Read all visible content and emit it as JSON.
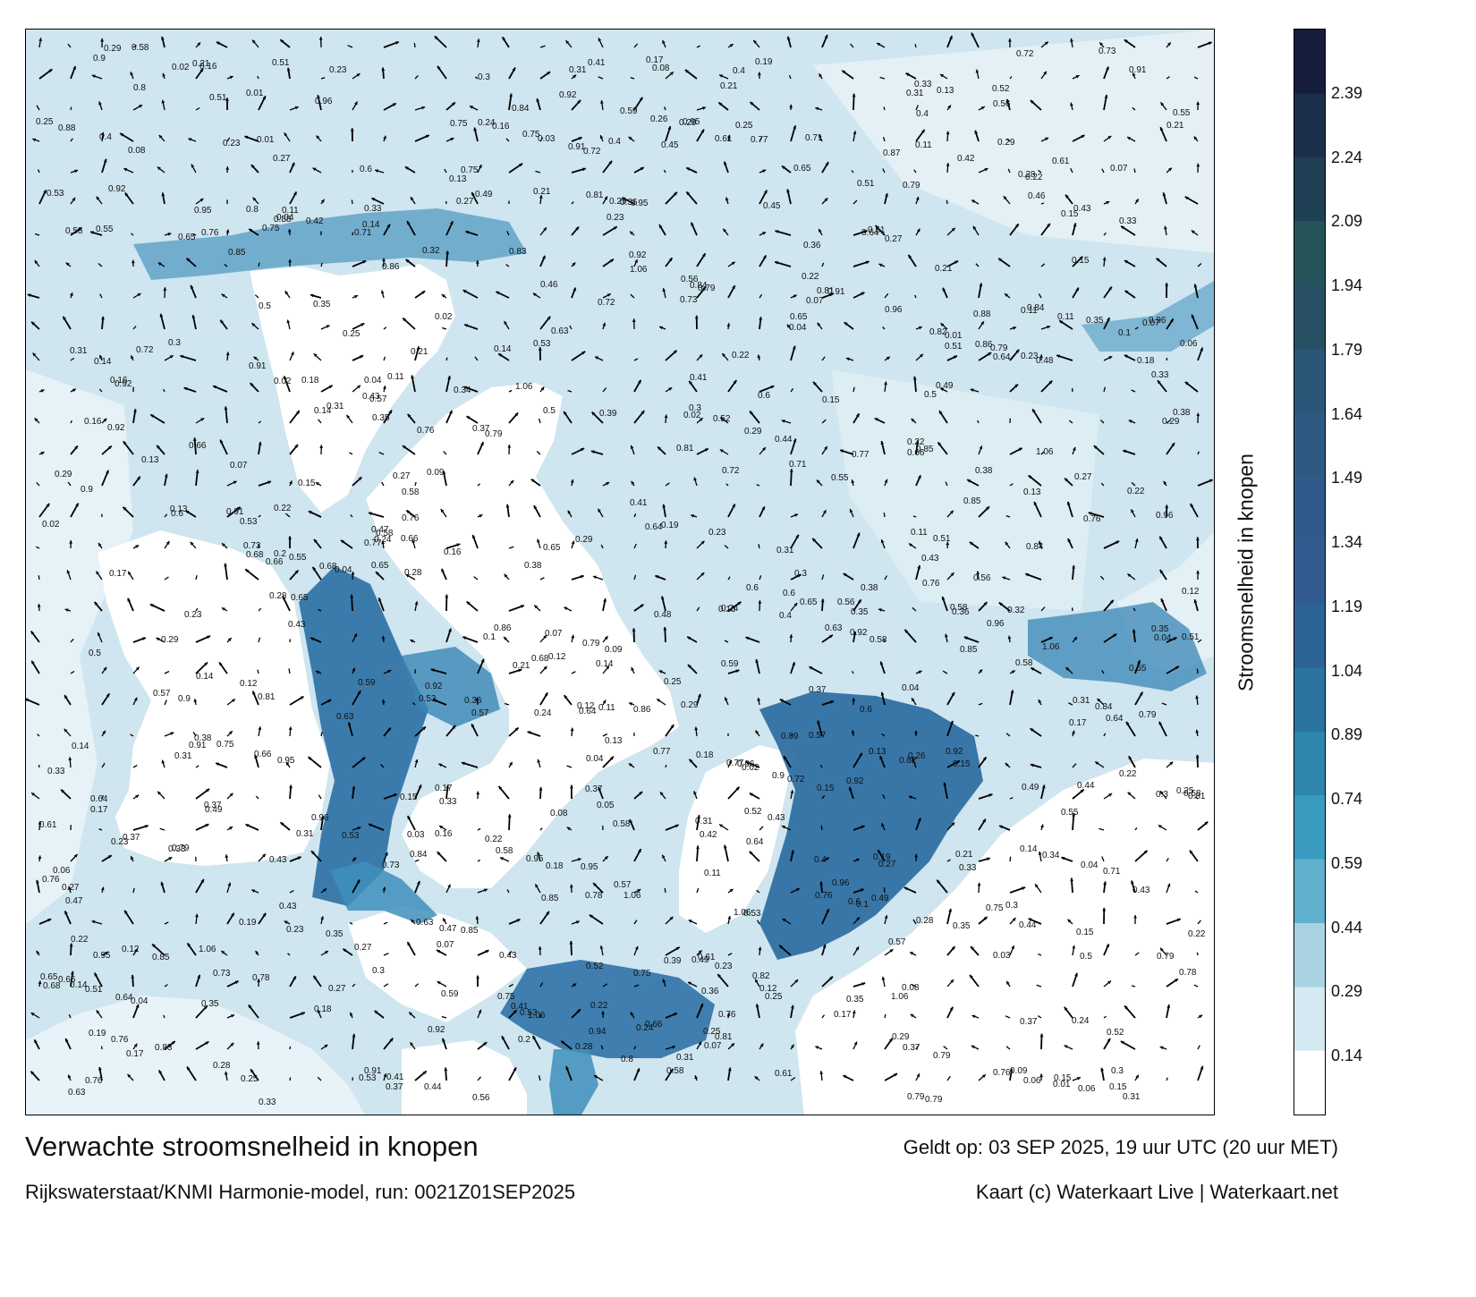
{
  "footer": {
    "title": "Verwachte stroomsnelheid in knopen",
    "valid_time": "Geldt op: 03 SEP 2025, 19 uur UTC (20 uur MET)",
    "model": "Rijkswaterstaat/KNMI Harmonie-model, run: 0021Z01SEP2025",
    "credit": "Kaart (c) Waterkaart Live | Waterkaart.net"
  },
  "colorbar": {
    "label": "Stroomsnelheid in knopen",
    "ticks": [
      "0.14",
      "0.29",
      "0.44",
      "0.59",
      "0.74",
      "0.89",
      "1.04",
      "1.19",
      "1.34",
      "1.49",
      "1.64",
      "1.79",
      "1.94",
      "2.09",
      "2.24",
      "2.39"
    ],
    "tick_values": [
      0.14,
      0.29,
      0.44,
      0.59,
      0.74,
      0.89,
      1.04,
      1.19,
      1.34,
      1.49,
      1.64,
      1.79,
      1.94,
      2.09,
      2.24,
      2.39
    ],
    "min": 0,
    "max": 2.54,
    "colors": [
      "#ffffff",
      "#d4e9f1",
      "#a9d3e2",
      "#5fb1cd",
      "#3a9bc0",
      "#2f86ad",
      "#2a73a0",
      "#2d6397",
      "#315a8f",
      "#2f5a8a",
      "#2c5a80",
      "#2a5778",
      "#275065",
      "#24535a",
      "#1f3f54",
      "#1a2f4a",
      "#161d3c"
    ]
  },
  "map": {
    "water_color": "#cfe5ef",
    "land_color": "#ffffff",
    "strong_current_color": "#2f6fa0",
    "arrow_color": "#000000",
    "speed_labels": [
      "0.16",
      "0.18",
      "0.13",
      "0.19",
      "0.12",
      "0.17",
      "0.21",
      "0.15",
      "0.23",
      "0.14",
      "0.2",
      "0.24",
      "0.26",
      "0.09",
      "0.11",
      "0.22",
      "0.3",
      "0.29",
      "0.33",
      "0.35",
      "0.28",
      "0.4",
      "0.36",
      "0.41",
      "0.49",
      "0.54",
      "0.87",
      "0.95",
      "0.72",
      "0.79",
      "0.65",
      "0.73",
      "0.81",
      "0.59",
      "0.94",
      "0.84",
      "0.62",
      "0.88",
      "0.91",
      "0.9",
      "0.86",
      "0.78",
      "0.71",
      "0.66",
      "0.57",
      "0.61",
      "0.45",
      "0.5",
      "0.58",
      "0.43",
      "0.37",
      "0.31",
      "0.27",
      "0.25",
      "0.08",
      "0.07",
      "0.06",
      "0.05",
      "0.04",
      "0.03",
      "0.02",
      "0.01",
      "0.1",
      "0.42",
      "0.47",
      "0.52",
      "0.56",
      "0.6",
      "0.64",
      "0.68",
      "0.75",
      "0.77",
      "0.82",
      "0.83",
      "0.85",
      "0.92",
      "0.96",
      "1.06",
      "0.76",
      "0.8",
      "0.63",
      "0.46",
      "0.53",
      "0.39",
      "0.34",
      "0.32",
      "0.38",
      "0.44",
      "0.48",
      "0.51",
      "0.55"
    ]
  }
}
